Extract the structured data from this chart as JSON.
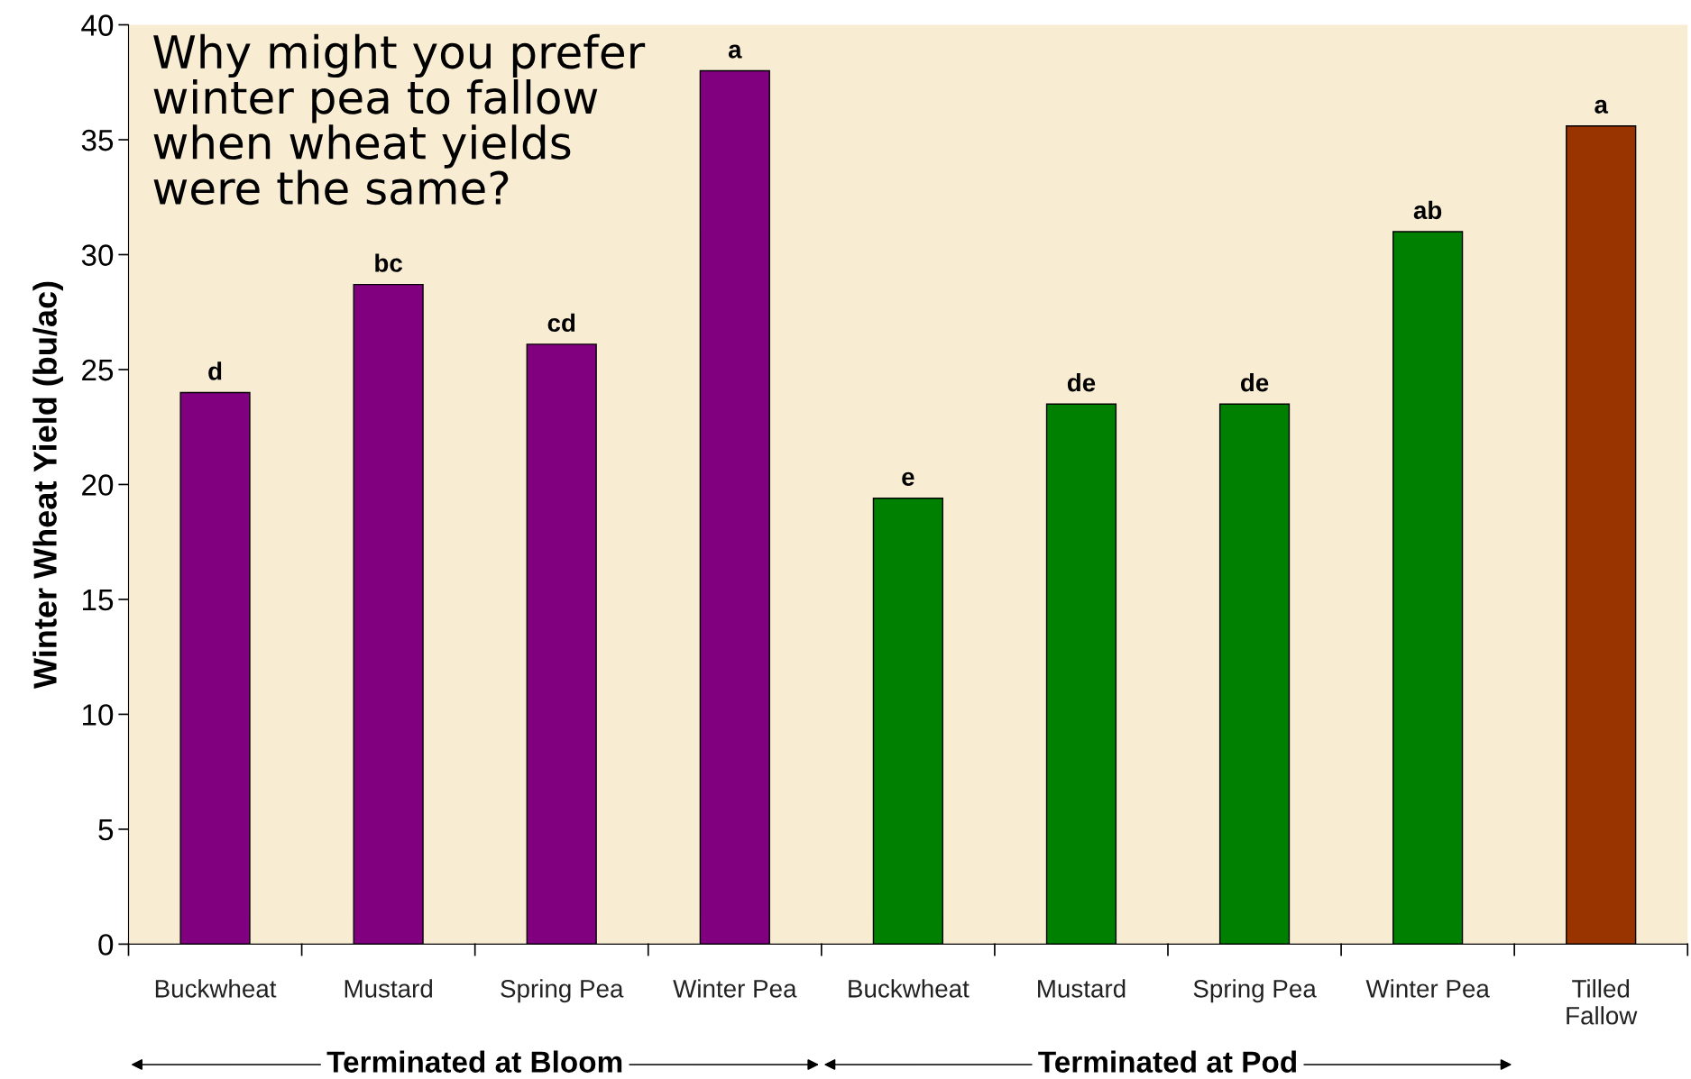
{
  "chart_data": {
    "type": "bar",
    "ylabel": "Winter Wheat Yield (bu/ac)",
    "categories": [
      "Buckwheat",
      "Mustard",
      "Spring Pea",
      "Winter Pea",
      "Buckwheat",
      "Mustard",
      "Spring Pea",
      "Winter Pea",
      "Tilled\nFallow"
    ],
    "values": [
      24.0,
      28.7,
      26.1,
      38.0,
      19.4,
      23.5,
      23.5,
      31.0,
      35.6
    ],
    "colors": [
      "#800080",
      "#800080",
      "#800080",
      "#800080",
      "#008000",
      "#008000",
      "#008000",
      "#008000",
      "#993300"
    ],
    "value_labels": [
      "d",
      "bc",
      "cd",
      "a",
      "e",
      "de",
      "de",
      "ab",
      "a"
    ],
    "ylim": [
      0,
      40
    ],
    "yticks": [
      0,
      5,
      10,
      15,
      20,
      25,
      30,
      35,
      40
    ],
    "grid": false,
    "legend": false,
    "annotations": [
      "Why might you prefer\nwinter pea to fallow\nwhen wheat yields\nwere the same?",
      "Terminated at Bloom",
      "Terminated at Pod"
    ]
  }
}
